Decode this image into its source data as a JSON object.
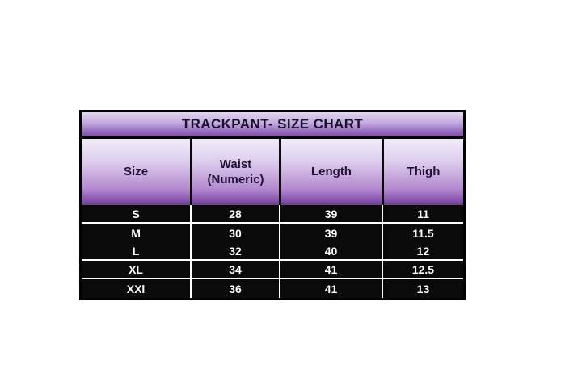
{
  "colors": {
    "page_background": "#ffffff",
    "table_border": "#000000",
    "gradient_light_lavender": "#f2ecf8",
    "gradient_mid_purple": "#8a55b0",
    "gradient_dark_purple": "#6b4190",
    "data_row_background": "#0a0a0a",
    "data_text": "#ffffff",
    "header_text": "#1c1133",
    "row_divider": "#ffffff"
  },
  "chart_data": {
    "type": "table",
    "title": "TRACKPANT- SIZE CHART",
    "columns": [
      "Size",
      "Waist (Numeric)",
      "Length",
      "Thigh"
    ],
    "rows": [
      [
        "S",
        28,
        39,
        11
      ],
      [
        "M",
        30,
        39,
        11.5
      ],
      [
        "L",
        32,
        40,
        12
      ],
      [
        "XL",
        34,
        41,
        12.5
      ],
      [
        "XXl",
        36,
        41,
        13
      ]
    ],
    "layout": {
      "header_style": "purple gradient, light top to dark bottom",
      "body_style": "black rows with white bold text",
      "grid": "white column separators in body, black in header"
    }
  }
}
